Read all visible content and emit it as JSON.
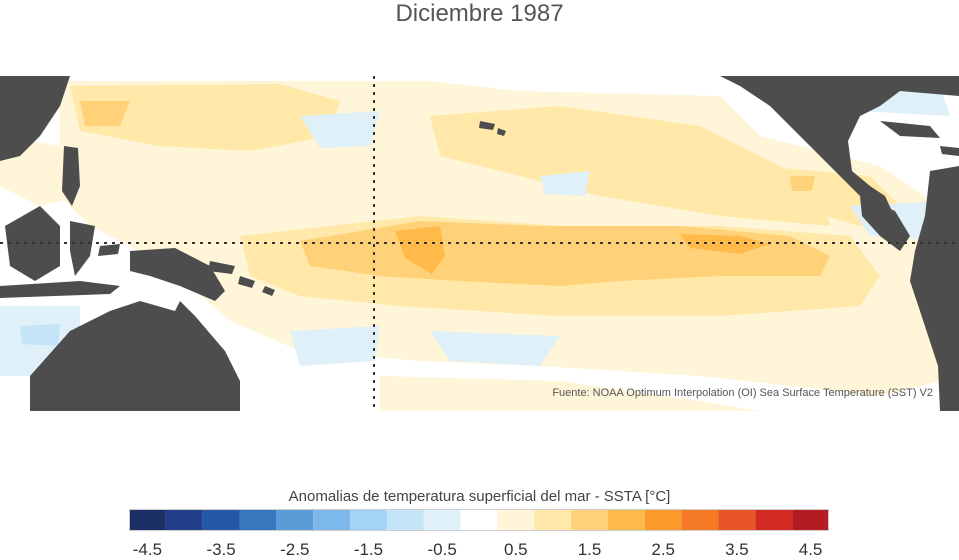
{
  "title": "Diciembre 1987",
  "source": "Fuente: NOAA Optimum Interpolation (OI) Sea Surface Temperature (SST) V2",
  "legend": {
    "title": "Anomalias de temperatura superficial del mar - SSTA  [°C]",
    "tick_labels": [
      "-4.5",
      "-3.5",
      "-2.5",
      "-1.5",
      "-0.5",
      "0.5",
      "1.5",
      "2.5",
      "3.5",
      "4.5"
    ],
    "bins": [
      {
        "from": -4.5,
        "to": -4.0,
        "color": "#1b2f66"
      },
      {
        "from": -4.0,
        "to": -3.5,
        "color": "#213e8a"
      },
      {
        "from": -3.5,
        "to": -3.0,
        "color": "#2457a5"
      },
      {
        "from": -3.0,
        "to": -2.5,
        "color": "#3978be"
      },
      {
        "from": -2.5,
        "to": -2.0,
        "color": "#5a9bd8"
      },
      {
        "from": -2.0,
        "to": -1.5,
        "color": "#7cb9ea"
      },
      {
        "from": -1.5,
        "to": -1.0,
        "color": "#a3d4f5"
      },
      {
        "from": -1.0,
        "to": -0.5,
        "color": "#c4e4f7"
      },
      {
        "from": -0.5,
        "to": 0.0,
        "color": "#dff0f8"
      },
      {
        "from": 0.0,
        "to": 0.5,
        "color": "#ffffff"
      },
      {
        "from": 0.5,
        "to": 1.0,
        "color": "#fff5d8"
      },
      {
        "from": 1.0,
        "to": 1.5,
        "color": "#ffe8a8"
      },
      {
        "from": 1.5,
        "to": 2.0,
        "color": "#ffd27a"
      },
      {
        "from": 2.0,
        "to": 2.5,
        "color": "#ffba49"
      },
      {
        "from": 2.5,
        "to": 3.0,
        "color": "#fc9a2b"
      },
      {
        "from": 3.0,
        "to": 3.5,
        "color": "#f57a25"
      },
      {
        "from": 3.5,
        "to": 4.0,
        "color": "#e85526"
      },
      {
        "from": 4.0,
        "to": 4.5,
        "color": "#d62b25"
      },
      {
        "from": 4.5,
        "to": 5.0,
        "color": "#b31c22"
      }
    ]
  },
  "colors": {
    "land": "#4d4d4d",
    "ocean_base": "#ffffff",
    "anom_0_5": "#fff5d8",
    "anom_1_0": "#ffe8a8",
    "anom_1_5": "#ffd27a",
    "anom_2_0": "#ffba49",
    "anom_neg": "#dff0f8",
    "anom_neg_1": "#c4e4f7",
    "anom_neg_2": "#a3d4f5"
  }
}
